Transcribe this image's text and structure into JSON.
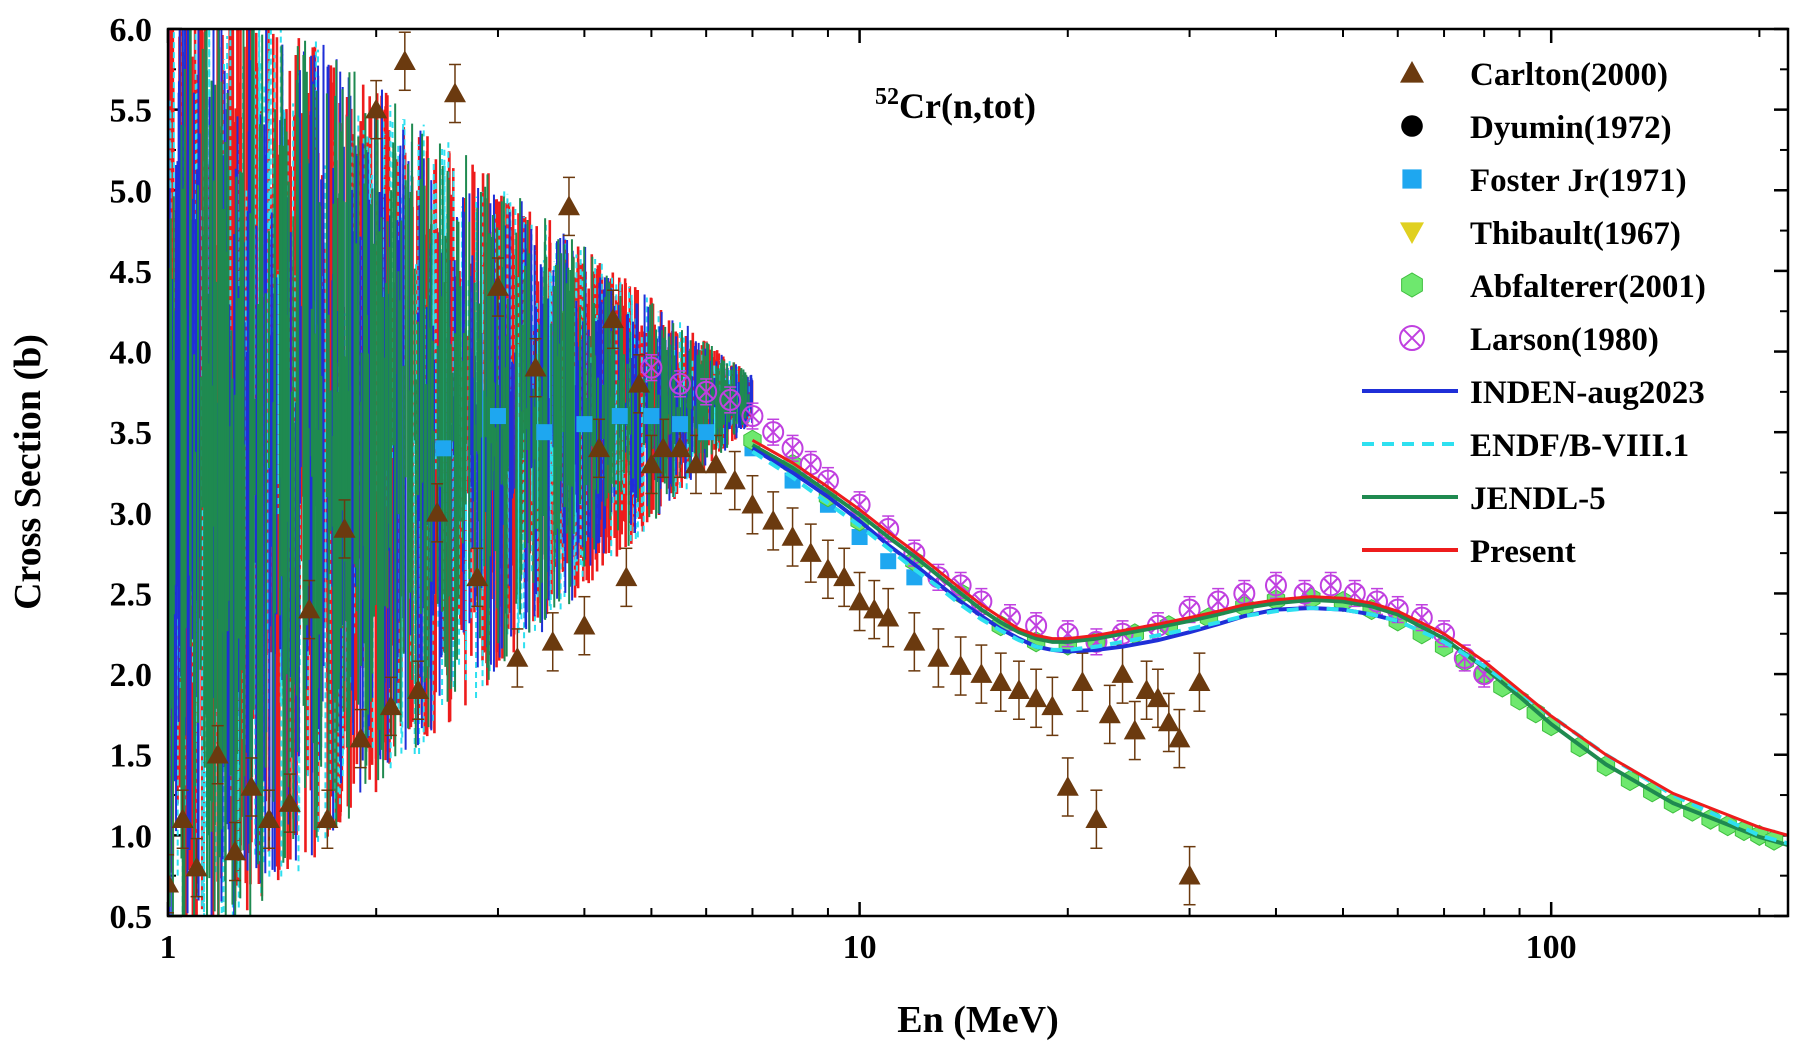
{
  "chart_data": {
    "type": "scatter",
    "title": "Cr(n,tot)",
    "title_superscript": "52",
    "xlabel": "En (MeV)",
    "ylabel": "Cross Section (b)",
    "xscale": "log",
    "xlim": [
      1,
      220
    ],
    "ylim": [
      0.5,
      6.0
    ],
    "x_ticks": [
      {
        "value": 1,
        "label": "1"
      },
      {
        "value": 10,
        "label": "10"
      },
      {
        "value": 100,
        "label": "100"
      }
    ],
    "y_ticks": [
      {
        "value": 0.5,
        "label": "0.5"
      },
      {
        "value": 1.0,
        "label": "1.0"
      },
      {
        "value": 1.5,
        "label": "1.5"
      },
      {
        "value": 2.0,
        "label": "2.0"
      },
      {
        "value": 2.5,
        "label": "2.5"
      },
      {
        "value": 3.0,
        "label": "3.0"
      },
      {
        "value": 3.5,
        "label": "3.5"
      },
      {
        "value": 4.0,
        "label": "4.0"
      },
      {
        "value": 4.5,
        "label": "4.5"
      },
      {
        "value": 5.0,
        "label": "5.0"
      },
      {
        "value": 5.5,
        "label": "5.5"
      },
      {
        "value": 6.0,
        "label": "6.0"
      }
    ],
    "legend_position": "top-right",
    "series": [
      {
        "name": "Carlton(2000)",
        "kind": "markers",
        "marker": "triangle-up",
        "color": "#6b3a0f",
        "x": [
          1.0,
          1.05,
          1.1,
          1.18,
          1.25,
          1.32,
          1.4,
          1.5,
          1.6,
          1.7,
          1.8,
          1.9,
          2.0,
          2.1,
          2.2,
          2.3,
          2.45,
          2.6,
          2.8,
          3.0,
          3.2,
          3.4,
          3.6,
          3.8,
          4.0,
          4.2,
          4.4,
          4.6,
          4.8,
          5.0,
          5.2,
          5.5,
          5.8,
          6.2,
          6.6,
          7.0,
          7.5,
          8.0,
          8.5,
          9.0,
          9.5,
          10.0,
          10.5,
          11.0,
          12.0,
          13.0,
          14.0,
          15.0,
          16.0,
          17.0,
          18.0,
          19.0,
          20.0,
          21.0,
          22.0,
          23.0,
          24.0,
          25.0,
          26.0,
          27.0,
          28.0,
          29.0,
          30.0,
          31.0
        ],
        "y": [
          0.7,
          1.1,
          0.8,
          1.5,
          0.9,
          1.3,
          1.1,
          1.2,
          2.4,
          1.1,
          2.9,
          1.6,
          5.5,
          1.8,
          5.8,
          1.9,
          3.0,
          5.6,
          2.6,
          4.4,
          2.1,
          3.9,
          2.2,
          4.9,
          2.3,
          3.4,
          4.2,
          2.6,
          3.8,
          3.3,
          3.4,
          3.4,
          3.3,
          3.3,
          3.2,
          3.05,
          2.95,
          2.85,
          2.75,
          2.65,
          2.6,
          2.45,
          2.4,
          2.35,
          2.2,
          2.1,
          2.05,
          2.0,
          1.95,
          1.9,
          1.85,
          1.8,
          1.3,
          1.95,
          1.1,
          1.75,
          2.0,
          1.65,
          1.9,
          1.85,
          1.7,
          1.6,
          0.75,
          1.95
        ]
      },
      {
        "name": "Dyumin(1972)",
        "kind": "markers",
        "marker": "circle",
        "color": "#000000",
        "x": [],
        "y": []
      },
      {
        "name": "Foster Jr(1971)",
        "kind": "markers",
        "marker": "square",
        "color": "#1ea7f0",
        "x": [
          2.5,
          3.0,
          3.5,
          4.0,
          4.5,
          5.0,
          5.5,
          6.0,
          7.0,
          8.0,
          9.0,
          10.0,
          11.0,
          12.0
        ],
        "y": [
          3.4,
          3.6,
          3.5,
          3.55,
          3.6,
          3.6,
          3.55,
          3.5,
          3.4,
          3.2,
          3.05,
          2.85,
          2.7,
          2.6
        ]
      },
      {
        "name": "Thibault(1967)",
        "kind": "markers",
        "marker": "triangle-down",
        "color": "#e0d020",
        "x": [],
        "y": []
      },
      {
        "name": "Abfalterer(2001)",
        "kind": "markers",
        "marker": "hexagon",
        "color": "#6ee86e",
        "x": [
          7,
          8,
          9,
          10,
          12,
          14,
          16,
          18,
          20,
          22,
          25,
          28,
          32,
          36,
          40,
          45,
          50,
          55,
          60,
          65,
          70,
          75,
          80,
          85,
          90,
          95,
          100,
          110,
          120,
          130,
          140,
          150,
          160,
          170,
          180,
          190,
          200,
          210
        ],
        "y": [
          3.45,
          3.3,
          3.1,
          2.95,
          2.7,
          2.5,
          2.3,
          2.2,
          2.18,
          2.2,
          2.25,
          2.3,
          2.35,
          2.42,
          2.46,
          2.47,
          2.45,
          2.4,
          2.33,
          2.25,
          2.17,
          2.08,
          2.0,
          1.92,
          1.84,
          1.76,
          1.68,
          1.55,
          1.43,
          1.34,
          1.27,
          1.2,
          1.15,
          1.1,
          1.06,
          1.03,
          1.0,
          0.97
        ]
      },
      {
        "name": "Larson(1980)",
        "kind": "markers",
        "marker": "circle-x",
        "color": "#c040e0",
        "x": [
          5.0,
          5.5,
          6.0,
          6.5,
          7.0,
          7.5,
          8.0,
          8.5,
          9.0,
          10.0,
          11.0,
          12.0,
          13.0,
          14.0,
          15.0,
          16.5,
          18.0,
          20.0,
          22.0,
          24.0,
          27.0,
          30.0,
          33.0,
          36.0,
          40.0,
          44.0,
          48.0,
          52.0,
          56.0,
          60.0,
          65.0,
          70.0,
          75.0,
          80.0
        ],
        "y": [
          3.9,
          3.8,
          3.75,
          3.7,
          3.6,
          3.5,
          3.4,
          3.3,
          3.2,
          3.05,
          2.9,
          2.75,
          2.6,
          2.55,
          2.45,
          2.35,
          2.3,
          2.25,
          2.2,
          2.25,
          2.3,
          2.4,
          2.45,
          2.5,
          2.55,
          2.5,
          2.55,
          2.5,
          2.45,
          2.4,
          2.35,
          2.25,
          2.1,
          2.0
        ]
      },
      {
        "name": "INDEN-aug2023",
        "kind": "line",
        "style": "solid",
        "color": "#1f2fd8",
        "x": [
          7,
          8,
          9,
          10,
          11,
          12,
          13,
          14,
          15,
          16,
          17,
          18,
          19,
          20,
          22,
          24,
          27,
          30,
          33,
          36,
          40,
          45,
          50,
          55,
          60
        ],
        "y": [
          3.4,
          3.25,
          3.1,
          2.95,
          2.8,
          2.68,
          2.56,
          2.45,
          2.36,
          2.28,
          2.22,
          2.17,
          2.15,
          2.14,
          2.15,
          2.17,
          2.21,
          2.26,
          2.31,
          2.36,
          2.4,
          2.41,
          2.4,
          2.37,
          2.33
        ]
      },
      {
        "name": "ENDF/B-VIII.1",
        "kind": "line",
        "style": "dashed",
        "color": "#2ee0f0",
        "x": [
          7,
          8,
          9,
          10,
          11,
          12,
          13,
          14,
          15,
          16,
          17,
          18,
          19,
          20,
          22,
          24,
          27,
          30,
          33,
          36,
          40,
          45,
          50,
          55,
          60,
          70,
          80,
          90,
          100,
          120,
          150,
          200,
          220
        ],
        "y": [
          3.38,
          3.22,
          3.06,
          2.92,
          2.78,
          2.65,
          2.54,
          2.43,
          2.34,
          2.27,
          2.21,
          2.17,
          2.15,
          2.15,
          2.17,
          2.2,
          2.24,
          2.28,
          2.32,
          2.36,
          2.39,
          2.41,
          2.4,
          2.37,
          2.33,
          2.2,
          2.05,
          1.89,
          1.74,
          1.5,
          1.25,
          1.0,
          0.95
        ]
      },
      {
        "name": "JENDL-5",
        "kind": "line",
        "style": "solid",
        "color": "#1f8a50",
        "x": [
          7,
          8,
          9,
          10,
          11,
          12,
          13,
          14,
          15,
          16,
          17,
          18,
          19,
          20,
          22,
          24,
          27,
          30,
          33,
          36,
          40,
          45,
          50,
          55,
          60,
          70,
          80,
          90,
          100,
          120,
          150,
          200,
          220
        ],
        "y": [
          3.42,
          3.28,
          3.13,
          2.99,
          2.85,
          2.73,
          2.61,
          2.5,
          2.4,
          2.32,
          2.26,
          2.22,
          2.2,
          2.2,
          2.22,
          2.25,
          2.29,
          2.33,
          2.37,
          2.41,
          2.44,
          2.46,
          2.45,
          2.42,
          2.37,
          2.22,
          2.04,
          1.86,
          1.69,
          1.44,
          1.2,
          0.99,
          0.94
        ]
      },
      {
        "name": "Present",
        "kind": "line",
        "style": "solid",
        "color": "#ee1c1c",
        "x": [
          7,
          8,
          9,
          10,
          11,
          12,
          13,
          14,
          15,
          16,
          17,
          18,
          19,
          20,
          22,
          24,
          27,
          30,
          33,
          36,
          40,
          45,
          50,
          55,
          60,
          70,
          80,
          90,
          100,
          120,
          150,
          200,
          220
        ],
        "y": [
          3.45,
          3.31,
          3.16,
          3.02,
          2.88,
          2.76,
          2.64,
          2.53,
          2.43,
          2.35,
          2.28,
          2.24,
          2.22,
          2.22,
          2.24,
          2.27,
          2.31,
          2.35,
          2.39,
          2.43,
          2.46,
          2.48,
          2.47,
          2.44,
          2.39,
          2.25,
          2.08,
          1.9,
          1.74,
          1.5,
          1.26,
          1.05,
          1.0
        ]
      }
    ],
    "resonance_region": {
      "x_range": [
        1,
        7
      ],
      "colors": [
        "#ee1c1c",
        "#2ee0f0",
        "#1f2fd8",
        "#1f8a50"
      ]
    }
  }
}
